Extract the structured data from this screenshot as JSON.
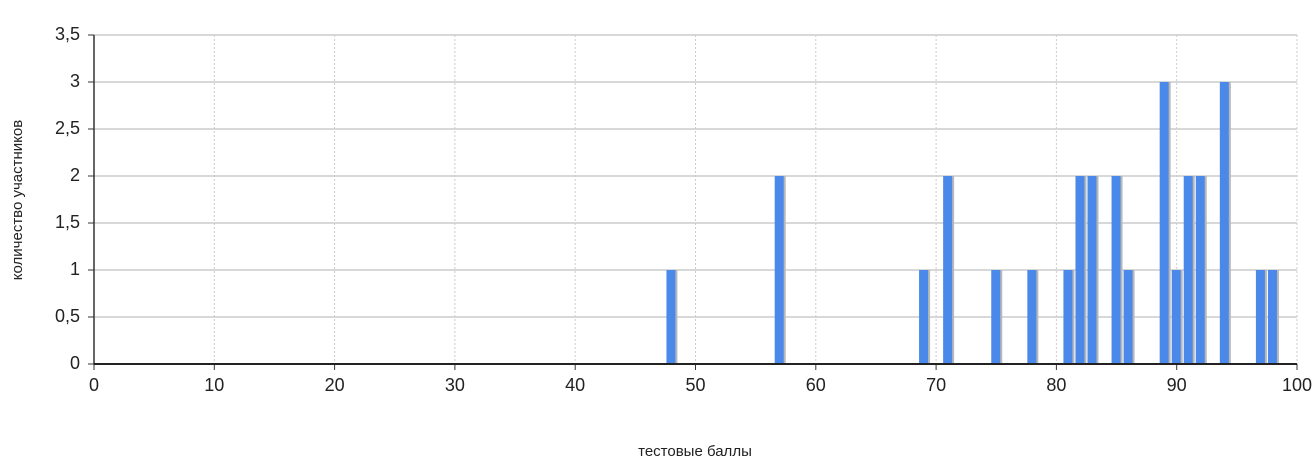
{
  "chart_data": {
    "type": "bar",
    "x_label": "тестовые баллы",
    "y_label": "количество участников",
    "x": [
      48,
      57,
      69,
      71,
      75,
      78,
      81,
      82,
      83,
      85,
      86,
      89,
      90,
      91,
      92,
      94,
      97,
      98
    ],
    "values": [
      1,
      2,
      1,
      2,
      1,
      1,
      1,
      2,
      2,
      2,
      1,
      3,
      1,
      2,
      2,
      3,
      1,
      1
    ],
    "color": "#4a88ea",
    "xlim": [
      0,
      100
    ],
    "xticks": [
      0,
      10,
      20,
      30,
      40,
      50,
      60,
      70,
      80,
      90,
      100
    ],
    "ylim": [
      0,
      3.5
    ],
    "yticks": [
      0,
      {
        "value": 0.5,
        "label": "0,5"
      },
      1,
      {
        "value": 1.5,
        "label": "1,5"
      },
      2,
      {
        "value": 2.5,
        "label": "2,5"
      },
      3,
      {
        "value": 3.5,
        "label": "3,5"
      }
    ],
    "grid": true
  }
}
